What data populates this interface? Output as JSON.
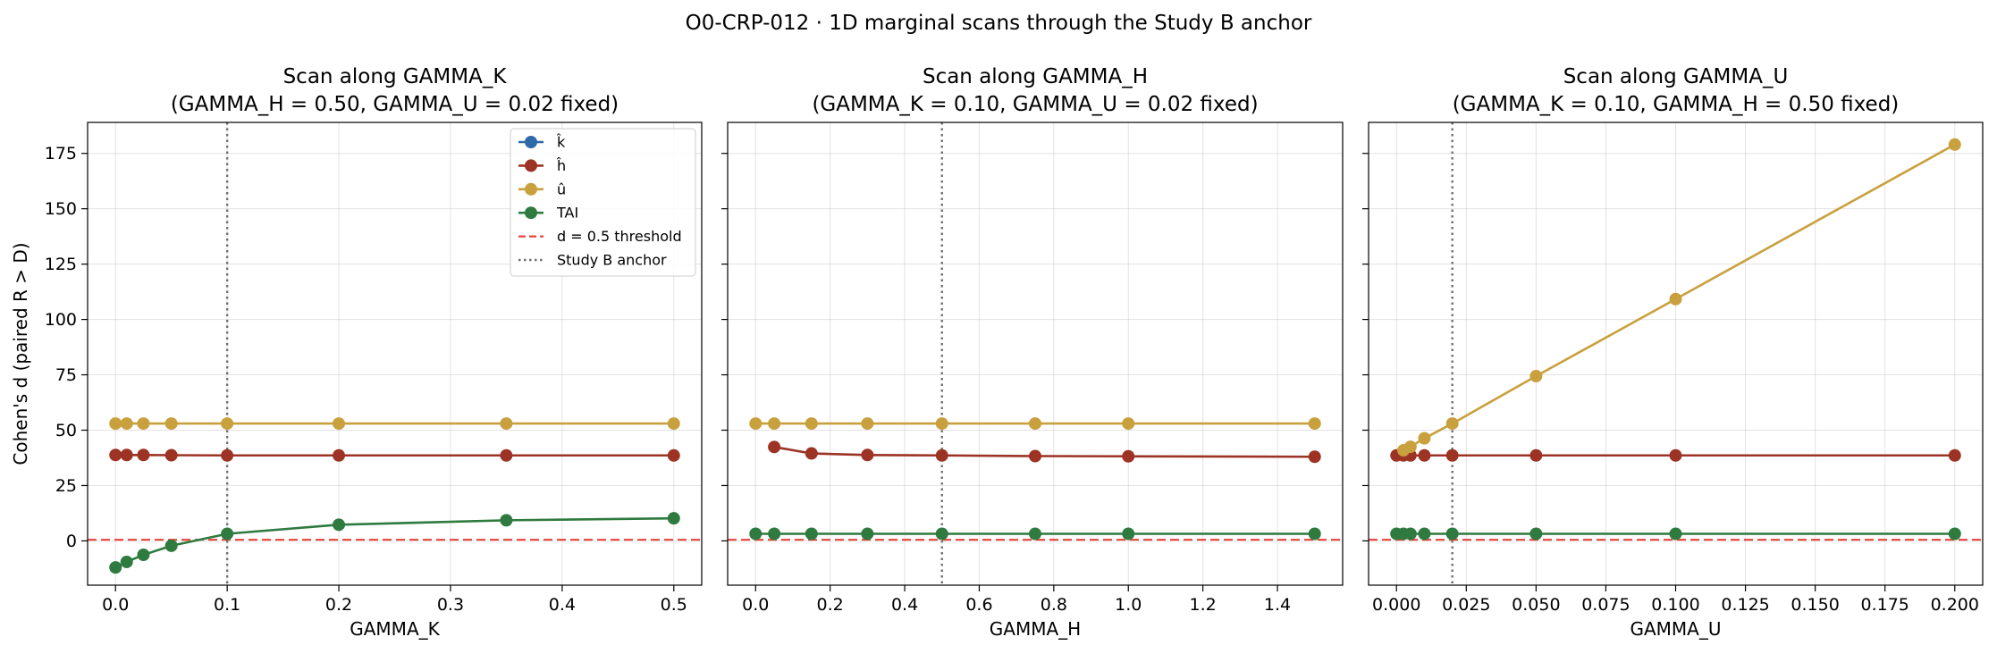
{
  "figure": {
    "suptitle": "O0-CRP-012 · 1D marginal scans through the Study B anchor"
  },
  "colors": {
    "k": "#2f6aa8",
    "h": "#9c3324",
    "u": "#c9a03e",
    "tai": "#2f7a3f",
    "threshold": "#e8453c",
    "anchor": "#707070"
  },
  "legend": {
    "placement": "top-right of first panel",
    "items": [
      {
        "label": "k̂",
        "kind": "line-marker",
        "color_key": "k"
      },
      {
        "label": "ĥ",
        "kind": "line-marker",
        "color_key": "h"
      },
      {
        "label": "û",
        "kind": "line-marker",
        "color_key": "u"
      },
      {
        "label": "TAI",
        "kind": "line-marker",
        "color_key": "tai"
      },
      {
        "label": "d = 0.5 threshold",
        "kind": "dashed",
        "color_key": "threshold"
      },
      {
        "label": "Study B anchor",
        "kind": "dotted",
        "color_key": "anchor"
      }
    ]
  },
  "chart_data": [
    {
      "type": "line",
      "title": "Scan along GAMMA_K",
      "subtitle": "(GAMMA_H = 0.50, GAMMA_U = 0.02 fixed)",
      "xlabel": "GAMMA_K",
      "ylabel": "Cohen's d (paired R > D)",
      "xlim": [
        -0.025,
        0.525
      ],
      "ylim": [
        -20,
        189
      ],
      "xticks": [
        0.0,
        0.1,
        0.2,
        0.3,
        0.4,
        0.5
      ],
      "xtick_labels": [
        "0.0",
        "0.1",
        "0.2",
        "0.3",
        "0.4",
        "0.5"
      ],
      "yticks": [
        0,
        25,
        50,
        75,
        100,
        125,
        150,
        175
      ],
      "ytick_labels": [
        "0",
        "25",
        "50",
        "75",
        "100",
        "125",
        "150",
        "175"
      ],
      "show_ytick_labels": true,
      "grid": true,
      "threshold_y": 0.5,
      "anchor_x": 0.1,
      "series": [
        {
          "color_key": "u",
          "x": [
            0.0,
            0.01,
            0.025,
            0.05,
            0.1,
            0.2,
            0.35,
            0.5
          ],
          "y": [
            53,
            53,
            53,
            53,
            53,
            53,
            53,
            53
          ]
        },
        {
          "color_key": "h",
          "x": [
            0.0,
            0.01,
            0.025,
            0.05,
            0.1,
            0.2,
            0.35,
            0.5
          ],
          "y": [
            38.8,
            38.8,
            38.8,
            38.7,
            38.6,
            38.6,
            38.6,
            38.6
          ]
        },
        {
          "color_key": "tai",
          "x": [
            0.0,
            0.01,
            0.025,
            0.05,
            0.1,
            0.2,
            0.35,
            0.5
          ],
          "y": [
            -12,
            -9.5,
            -6.3,
            -2.2,
            3.2,
            7.3,
            9.3,
            10.2
          ]
        }
      ]
    },
    {
      "type": "line",
      "title": "Scan along GAMMA_H",
      "subtitle": "(GAMMA_K = 0.10, GAMMA_U = 0.02 fixed)",
      "xlabel": "GAMMA_H",
      "ylabel": "",
      "xlim": [
        -0.075,
        1.575
      ],
      "ylim": [
        -20,
        189
      ],
      "xticks": [
        0.0,
        0.2,
        0.4,
        0.6,
        0.8,
        1.0,
        1.2,
        1.4
      ],
      "xtick_labels": [
        "0.0",
        "0.2",
        "0.4",
        "0.6",
        "0.8",
        "1.0",
        "1.2",
        "1.4"
      ],
      "yticks": [
        0,
        25,
        50,
        75,
        100,
        125,
        150,
        175
      ],
      "ytick_labels": [],
      "show_ytick_labels": false,
      "grid": true,
      "threshold_y": 0.5,
      "anchor_x": 0.5,
      "series": [
        {
          "color_key": "u",
          "x": [
            0.0,
            0.05,
            0.15,
            0.3,
            0.5,
            0.75,
            1.0,
            1.5
          ],
          "y": [
            53,
            53,
            53,
            53,
            53,
            53,
            53,
            53
          ]
        },
        {
          "color_key": "h",
          "x": [
            0.05,
            0.15,
            0.3,
            0.5,
            0.75,
            1.0,
            1.5
          ],
          "y": [
            42.4,
            39.5,
            38.8,
            38.6,
            38.3,
            38.2,
            38.0
          ]
        },
        {
          "color_key": "tai",
          "x": [
            0.0,
            0.05,
            0.15,
            0.3,
            0.5,
            0.75,
            1.0,
            1.5
          ],
          "y": [
            3.2,
            3.2,
            3.2,
            3.2,
            3.2,
            3.2,
            3.2,
            3.2
          ]
        }
      ]
    },
    {
      "type": "line",
      "title": "Scan along GAMMA_U",
      "subtitle": "(GAMMA_K = 0.10, GAMMA_H = 0.50 fixed)",
      "xlabel": "GAMMA_U",
      "ylabel": "",
      "xlim": [
        -0.01,
        0.21
      ],
      "ylim": [
        -20,
        189
      ],
      "xticks": [
        0.0,
        0.025,
        0.05,
        0.075,
        0.1,
        0.125,
        0.15,
        0.175,
        0.2
      ],
      "xtick_labels": [
        "0.000",
        "0.025",
        "0.050",
        "0.075",
        "0.100",
        "0.125",
        "0.150",
        "0.175",
        "0.200"
      ],
      "yticks": [
        0,
        25,
        50,
        75,
        100,
        125,
        150,
        175
      ],
      "ytick_labels": [],
      "show_ytick_labels": false,
      "grid": true,
      "threshold_y": 0.5,
      "anchor_x": 0.02,
      "series": [
        {
          "color_key": "h",
          "x": [
            0.0,
            0.0025,
            0.005,
            0.01,
            0.02,
            0.05,
            0.1,
            0.2
          ],
          "y": [
            38.6,
            38.6,
            38.6,
            38.6,
            38.6,
            38.6,
            38.6,
            38.6
          ]
        },
        {
          "color_key": "u",
          "x": [
            0.0025,
            0.005,
            0.01,
            0.02,
            0.05,
            0.1,
            0.2
          ],
          "y": [
            40.9,
            42.5,
            46.3,
            53.0,
            74.4,
            109.2,
            179.0
          ]
        },
        {
          "color_key": "tai",
          "x": [
            0.0,
            0.0025,
            0.005,
            0.01,
            0.02,
            0.05,
            0.1,
            0.2
          ],
          "y": [
            3.2,
            3.2,
            3.2,
            3.2,
            3.2,
            3.2,
            3.2,
            3.2
          ]
        }
      ]
    }
  ]
}
